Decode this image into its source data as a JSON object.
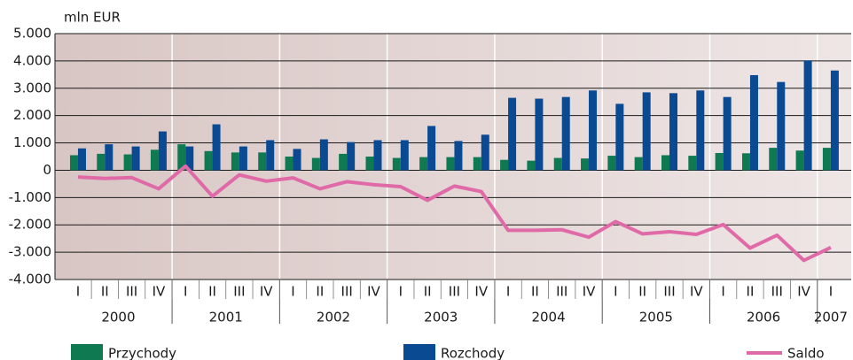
{
  "chart_data": {
    "type": "bar_line",
    "y_axis_label": "mln EUR",
    "categories": [
      "I",
      "II",
      "III",
      "IV",
      "I",
      "II",
      "III",
      "IV",
      "I",
      "II",
      "III",
      "IV",
      "I",
      "II",
      "III",
      "IV",
      "I",
      "II",
      "III",
      "IV",
      "I",
      "II",
      "III",
      "IV",
      "I",
      "II",
      "III",
      "IV",
      "I"
    ],
    "years": [
      "2000",
      "2001",
      "2002",
      "2003",
      "2004",
      "2005",
      "2006",
      "2007"
    ],
    "series": [
      {
        "name": "Przychody",
        "type": "bar",
        "color": "#0f7a52",
        "values": [
          550,
          600,
          580,
          750,
          950,
          700,
          650,
          650,
          500,
          450,
          600,
          500,
          450,
          480,
          480,
          480,
          380,
          350,
          450,
          430,
          530,
          480,
          550,
          530,
          630,
          620,
          820,
          720,
          820
        ]
      },
      {
        "name": "Rozchody",
        "type": "bar",
        "color": "#0a4a92",
        "values": [
          800,
          950,
          870,
          1420,
          870,
          1680,
          870,
          1100,
          780,
          1130,
          1030,
          1100,
          1100,
          1620,
          1070,
          1300,
          2650,
          2620,
          2680,
          2920,
          2430,
          2850,
          2820,
          2920,
          2680,
          3480,
          3230,
          4020,
          3650
        ]
      },
      {
        "name": "Saldo",
        "type": "line",
        "color": "#e06aa8",
        "values": [
          -250,
          -300,
          -270,
          -680,
          150,
          -950,
          -170,
          -400,
          -280,
          -680,
          -420,
          -530,
          -600,
          -1100,
          -580,
          -780,
          -2200,
          -2200,
          -2180,
          -2450,
          -1880,
          -2330,
          -2250,
          -2350,
          -1990,
          -2850,
          -2380,
          -3300,
          -2830
        ]
      }
    ],
    "ylim": [
      -4000,
      5000
    ],
    "yticks": [
      {
        "value": -4000,
        "label": "-4.000"
      },
      {
        "value": -3000,
        "label": "-3.000"
      },
      {
        "value": -2000,
        "label": "-2.000"
      },
      {
        "value": -1000,
        "label": "-1.000"
      },
      0,
      {
        "value": 1000,
        "label": "1.000"
      },
      {
        "value": 2000,
        "label": "2.000"
      },
      {
        "value": 3000,
        "label": "3.000"
      },
      {
        "value": 4000,
        "label": "4.000"
      },
      {
        "value": 5000,
        "label": "5.000"
      }
    ],
    "grid": true
  }
}
